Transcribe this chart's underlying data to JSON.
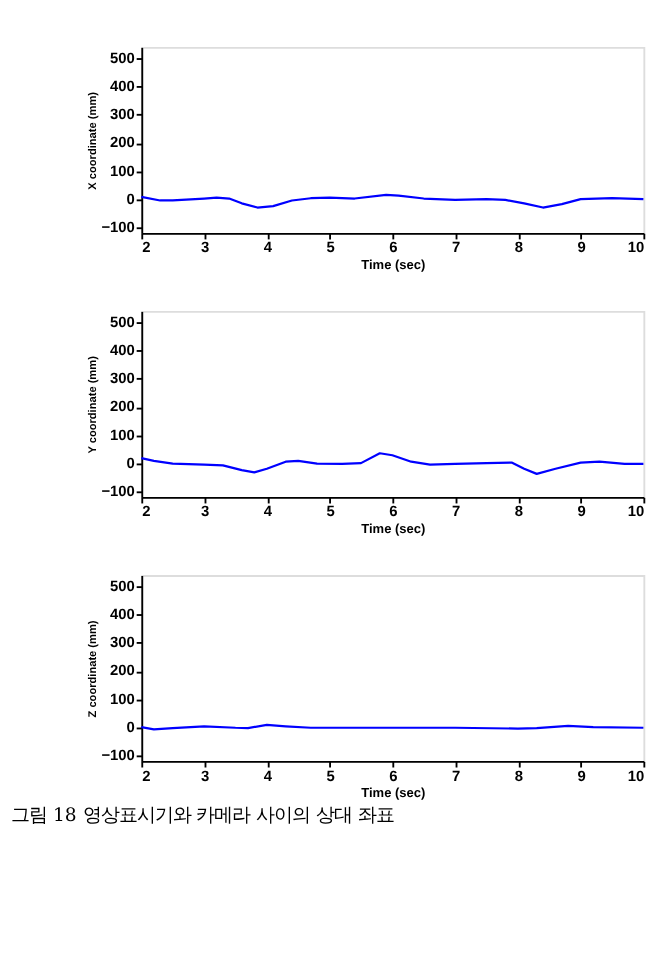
{
  "chart_data": [
    {
      "type": "line",
      "xlabel": "Time (sec)",
      "ylabel": "X coordinate (mm)",
      "xlim": [
        2,
        10
      ],
      "ylim": [
        -120,
        540
      ],
      "xticks": [
        2,
        3,
        4,
        5,
        6,
        7,
        8,
        9,
        10
      ],
      "yticks": [
        -100,
        0,
        100,
        200,
        300,
        400,
        500
      ],
      "grid": false,
      "series": [
        {
          "color": "#0000ff",
          "x": [
            2,
            2.3,
            2.5,
            3,
            3.2,
            3.4,
            3.6,
            3.85,
            4.1,
            4.4,
            4.7,
            5,
            5.4,
            5.9,
            6.1,
            6.5,
            7,
            7.5,
            7.8,
            8.1,
            8.4,
            8.7,
            9,
            9.5,
            10
          ],
          "values": [
            8,
            -5,
            -5,
            2,
            5,
            2,
            -15,
            -30,
            -25,
            -5,
            3,
            5,
            2,
            15,
            12,
            2,
            -3,
            0,
            -3,
            -15,
            -30,
            -18,
            0,
            3,
            0
          ]
        }
      ]
    },
    {
      "type": "line",
      "xlabel": "Time (sec)",
      "ylabel": "Y coordinate (mm)",
      "xlim": [
        2,
        10
      ],
      "ylim": [
        -120,
        540
      ],
      "xticks": [
        2,
        3,
        4,
        5,
        6,
        7,
        8,
        9,
        10
      ],
      "yticks": [
        -100,
        0,
        100,
        200,
        300,
        400,
        500
      ],
      "grid": false,
      "series": [
        {
          "color": "#0000ff",
          "x": [
            2,
            2.2,
            2.5,
            3,
            3.3,
            3.6,
            3.8,
            4,
            4.3,
            4.5,
            4.8,
            5.2,
            5.5,
            5.8,
            6,
            6.3,
            6.6,
            7,
            7.5,
            7.9,
            8.1,
            8.3,
            8.6,
            9,
            9.3,
            9.7,
            10
          ],
          "values": [
            18,
            8,
            -2,
            -5,
            -8,
            -25,
            -33,
            -20,
            5,
            8,
            -2,
            -3,
            0,
            35,
            28,
            5,
            -5,
            -3,
            0,
            2,
            -20,
            -38,
            -20,
            2,
            5,
            -3,
            -3
          ]
        }
      ]
    },
    {
      "type": "line",
      "xlabel": "Time (sec)",
      "ylabel": "Z coordinate (mm)",
      "xlim": [
        2,
        10
      ],
      "ylim": [
        -120,
        540
      ],
      "xticks": [
        2,
        3,
        4,
        5,
        6,
        7,
        8,
        9,
        10
      ],
      "yticks": [
        -100,
        0,
        100,
        200,
        300,
        400,
        500
      ],
      "grid": false,
      "annotations": [
        "그림 18 영상표시기와 카메라 사이의 상대 좌표"
      ],
      "series": [
        {
          "color": "#0000ff",
          "x": [
            2,
            2.2,
            2.5,
            3,
            3.5,
            3.7,
            4,
            4.3,
            4.7,
            5,
            6,
            7,
            8,
            8.3,
            8.8,
            9.2,
            10
          ],
          "values": [
            0,
            -8,
            -3,
            3,
            -2,
            -3,
            8,
            3,
            -2,
            -2,
            -2,
            -2,
            -5,
            -3,
            5,
            0,
            -2
          ]
        }
      ]
    }
  ]
}
